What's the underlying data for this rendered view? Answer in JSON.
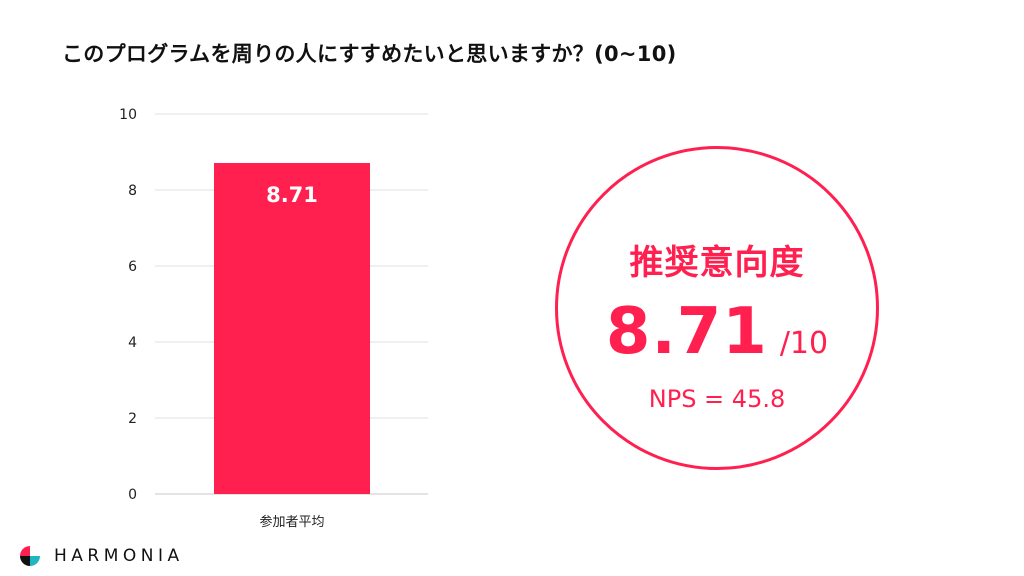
{
  "page": {
    "title": "このプログラムを周りの人にすすめたいと思いますか？(0~10)"
  },
  "chart_data": {
    "type": "bar",
    "categories": [
      "参加者平均"
    ],
    "values": [
      8.71
    ],
    "data_labels": [
      "8.71"
    ],
    "ylim": [
      0,
      10
    ],
    "yticks": [
      0,
      2,
      4,
      6,
      8,
      10
    ],
    "grid": true,
    "bar_color": "#FF2050",
    "label_color": "#FFFFFF"
  },
  "nps_panel": {
    "label": "推奨意向度",
    "score": "8.71",
    "max": "/10",
    "nps_text": "NPS = 45.8",
    "accent": "#FF2050"
  },
  "brand": {
    "name": "HARMONIA",
    "logo_colors": [
      "#FF2050",
      "#1FB6C1",
      "#111111"
    ]
  }
}
